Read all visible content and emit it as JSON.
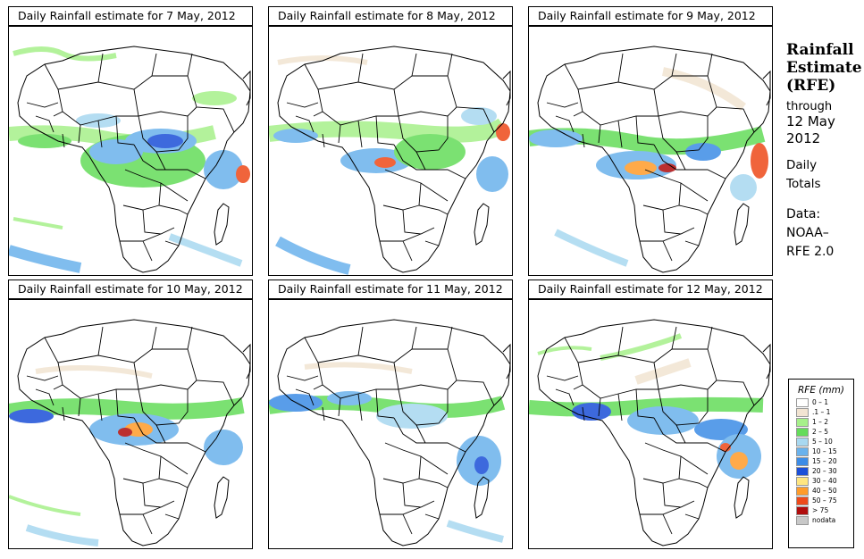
{
  "panels": [
    {
      "title": "Daily Rainfall estimate for  7 May, 2012"
    },
    {
      "title": "Daily Rainfall estimate for  8 May, 2012"
    },
    {
      "title": "Daily Rainfall estimate for  9 May, 2012"
    },
    {
      "title": "Daily Rainfall estimate for  10 May, 2012"
    },
    {
      "title": "Daily Rainfall estimate for  11 May, 2012"
    },
    {
      "title": "Daily Rainfall estimate for  12 May, 2012"
    }
  ],
  "side": {
    "title_line1": "Rainfall",
    "title_line2": "Estimate",
    "title_line3": "(RFE)",
    "through": "through",
    "date_line1": "12 May",
    "date_line2": "2012",
    "daily": "Daily",
    "totals": "Totals",
    "data_label": "Data:",
    "source_line1": "NOAA–",
    "source_line2": "RFE 2.0"
  },
  "legend": {
    "title": "RFE (mm)",
    "items": [
      {
        "label": "0 – 1",
        "color": "#ffffff"
      },
      {
        "label": ".1 – 1",
        "color": "#f2e4d2"
      },
      {
        "label": "1 – 2",
        "color": "#a6f08a"
      },
      {
        "label": "2 – 5",
        "color": "#64dc5a"
      },
      {
        "label": "5 – 10",
        "color": "#a8d8f0"
      },
      {
        "label": "10 – 15",
        "color": "#6ab2ec"
      },
      {
        "label": "15 – 20",
        "color": "#3d8ce6"
      },
      {
        "label": "20 – 30",
        "color": "#1c50d8"
      },
      {
        "label": "30 – 40",
        "color": "#ffe680"
      },
      {
        "label": "40 – 50",
        "color": "#ff9c2a"
      },
      {
        "label": "50 – 75",
        "color": "#ee4a1a"
      },
      {
        "label": "> 75",
        "color": "#b00c0c"
      },
      {
        "label": "nodata",
        "color": "#c8c8c8"
      }
    ]
  }
}
